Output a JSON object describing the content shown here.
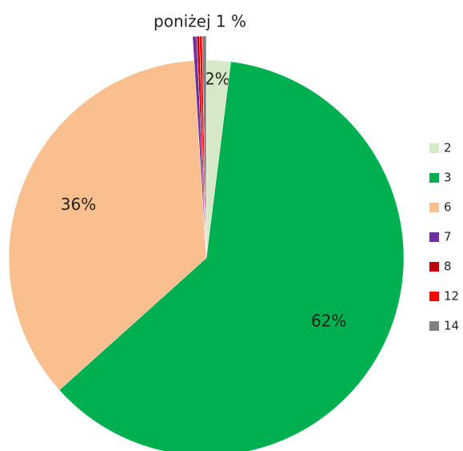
{
  "chart_data": {
    "type": "pie",
    "annotation": "poniżej 1 %",
    "categories": [
      "2",
      "3",
      "6",
      "7",
      "8",
      "12",
      "14"
    ],
    "values": [
      2,
      62,
      36,
      0.3,
      0.2,
      0.2,
      0.3
    ],
    "value_labels": [
      "2%",
      "62%",
      "36%",
      null,
      null,
      null,
      null
    ],
    "colors": [
      "#d6e9c6",
      "#00b050",
      "#f9bf8f",
      "#7030a0",
      "#c00000",
      "#ff0000",
      "#808080"
    ],
    "legend": "right"
  }
}
